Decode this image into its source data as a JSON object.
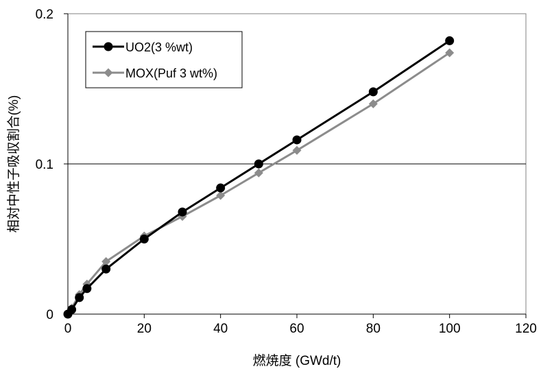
{
  "chart_data": {
    "type": "line",
    "xlabel": "燃焼度 (GWd/t)",
    "ylabel": "相対中性子吸収割合(%)",
    "xlim": [
      0,
      120
    ],
    "ylim": [
      0,
      0.2
    ],
    "x_ticks": [
      0,
      20,
      40,
      60,
      80,
      100,
      120
    ],
    "x_tick_labels": [
      "0",
      "20",
      "40",
      "60",
      "80",
      "100",
      "120"
    ],
    "y_ticks": [
      0,
      0.1,
      0.2
    ],
    "y_tick_labels": [
      "0",
      "0.1",
      "0.2"
    ],
    "grid": "horizontal major lines",
    "legend_position": "top-left",
    "series": [
      {
        "name": "UO2(3 %wt)",
        "color": "#000000",
        "marker": "circle",
        "x": [
          0,
          1,
          3,
          5,
          10,
          20,
          30,
          40,
          50,
          60,
          80,
          100
        ],
        "y": [
          0,
          0.003,
          0.011,
          0.017,
          0.03,
          0.05,
          0.068,
          0.084,
          0.1,
          0.116,
          0.148,
          0.182
        ]
      },
      {
        "name": "MOX(Puf 3 wt%)",
        "color": "#8c8c8c",
        "marker": "diamond",
        "x": [
          0,
          1,
          3,
          5,
          10,
          20,
          30,
          40,
          50,
          60,
          80,
          100
        ],
        "y": [
          0,
          0.004,
          0.013,
          0.02,
          0.035,
          0.052,
          0.065,
          0.079,
          0.094,
          0.109,
          0.14,
          0.174
        ]
      }
    ]
  }
}
